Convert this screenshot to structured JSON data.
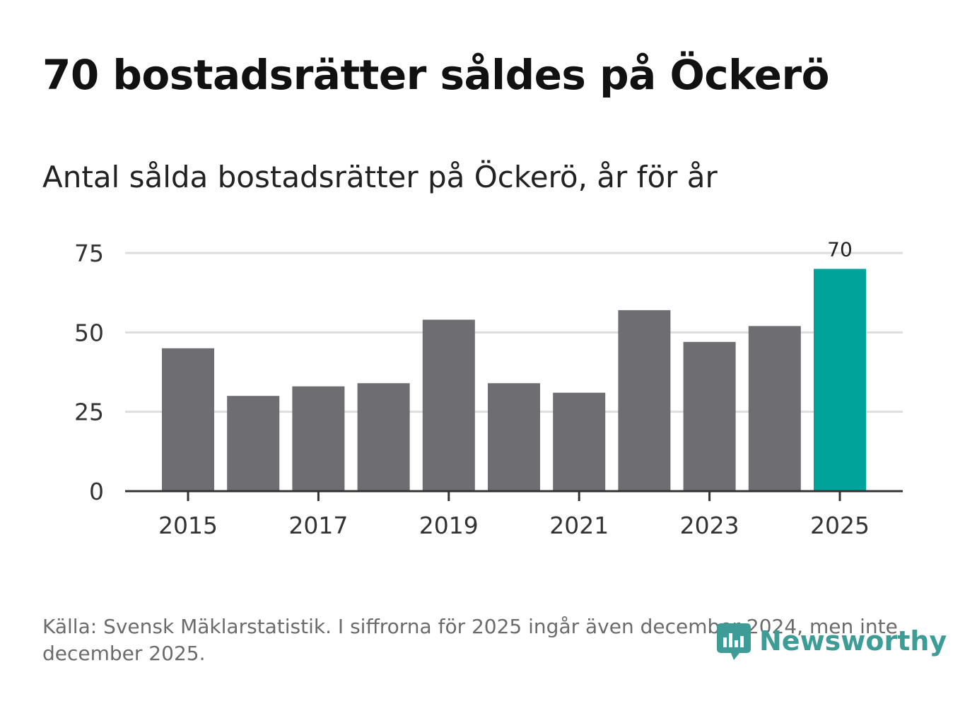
{
  "header": {
    "title": "70 bostadsrätter såldes på Öckerö",
    "subtitle": "Antal sålda bostadsrätter på Öckerö, år för år"
  },
  "footer": {
    "source": "Källa: Svensk Mäklarstatistik. I siffrorna för 2025 ingår även december 2024, men inte december 2025.",
    "brand": "Newsworthy"
  },
  "colors": {
    "bar": "#6e6d72",
    "highlight": "#00a39a",
    "grid": "#dddddd",
    "axis": "#333333",
    "brand": "#3d9c95"
  },
  "chart_data": {
    "type": "bar",
    "title": "70 bostadsrätter såldes på Öckerö",
    "subtitle": "Antal sålda bostadsrätter på Öckerö, år för år",
    "xlabel": "",
    "ylabel": "",
    "categories": [
      "2015",
      "2016",
      "2017",
      "2018",
      "2019",
      "2020",
      "2021",
      "2022",
      "2023",
      "2024",
      "2025"
    ],
    "values": [
      45,
      30,
      33,
      34,
      54,
      34,
      31,
      57,
      47,
      52,
      70
    ],
    "highlight_index": 10,
    "data_labels": [
      {
        "index": 10,
        "text": "70"
      }
    ],
    "xticks": [
      "2015",
      "2017",
      "2019",
      "2021",
      "2023",
      "2025"
    ],
    "yticks": [
      0,
      25,
      50,
      75
    ],
    "ylim": [
      0,
      75
    ],
    "grid": true
  }
}
